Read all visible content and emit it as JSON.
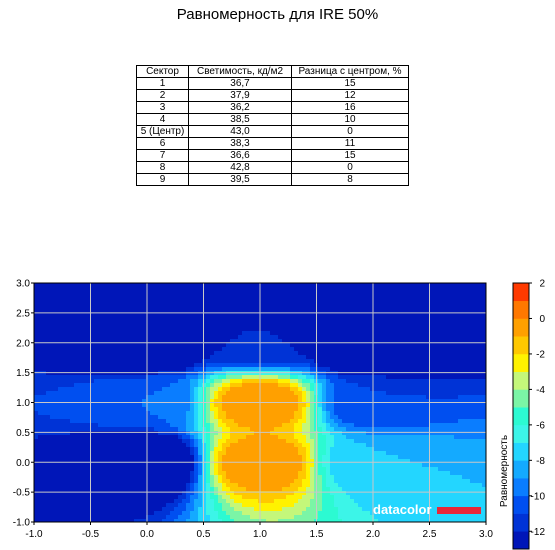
{
  "title": "Равномерность для IRE 50%",
  "table": {
    "headers": [
      "Сектор",
      "Светимость, кд/м2",
      "Разница с центром, %"
    ],
    "rows": [
      [
        "1",
        "36,7",
        "15"
      ],
      [
        "2",
        "37,9",
        "12"
      ],
      [
        "3",
        "36,2",
        "16"
      ],
      [
        "4",
        "38,5",
        "10"
      ],
      [
        "5 (Центр)",
        "43,0",
        "0"
      ],
      [
        "6",
        "38,3",
        "11"
      ],
      [
        "7",
        "36,6",
        "15"
      ],
      [
        "8",
        "42,8",
        "0"
      ],
      [
        "9",
        "39,5",
        "8"
      ]
    ]
  },
  "watermark": "datacolor",
  "chart_data": {
    "type": "heatmap",
    "subtype": "filled-contour",
    "x_ticks": [
      "-1.0",
      "-0.5",
      "0.0",
      "0.5",
      "1.0",
      "1.5",
      "2.0",
      "2.5",
      "3.0"
    ],
    "y_ticks": [
      "3.0",
      "2.5",
      "2.0",
      "1.5",
      "1.0",
      "0.5",
      "0.0",
      "-0.5",
      "-1.0"
    ],
    "xlim": [
      -1.0,
      3.0
    ],
    "ylim": [
      -1.0,
      3.0
    ],
    "grid": true,
    "grid_sectors": {
      "x": [
        0,
        1,
        2
      ],
      "y": [
        2,
        1,
        0
      ],
      "values": [
        [
          -15,
          -12,
          -16
        ],
        [
          -10,
          0,
          -11
        ],
        [
          -15,
          0,
          -8
        ]
      ]
    },
    "colorbar": {
      "label": "Равномерность",
      "ticks": [
        "2",
        "0",
        "-2",
        "-4",
        "-6",
        "-8",
        "-10",
        "-12"
      ],
      "range": [
        -13,
        2
      ],
      "levels": [
        -13,
        -12,
        -11,
        -10,
        -9,
        -8,
        -7,
        -6,
        -5,
        -4,
        -3,
        -2,
        -1,
        0,
        1,
        2
      ],
      "colors": [
        "#0016b8",
        "#0033d6",
        "#004ff0",
        "#0a7dff",
        "#14aaff",
        "#23d6ff",
        "#3cf5e8",
        "#2cfad2",
        "#7bf5a6",
        "#c4f77a",
        "#fff200",
        "#ffc800",
        "#ffa000",
        "#ff7800",
        "#ff3a00",
        "#ff0000"
      ]
    }
  }
}
